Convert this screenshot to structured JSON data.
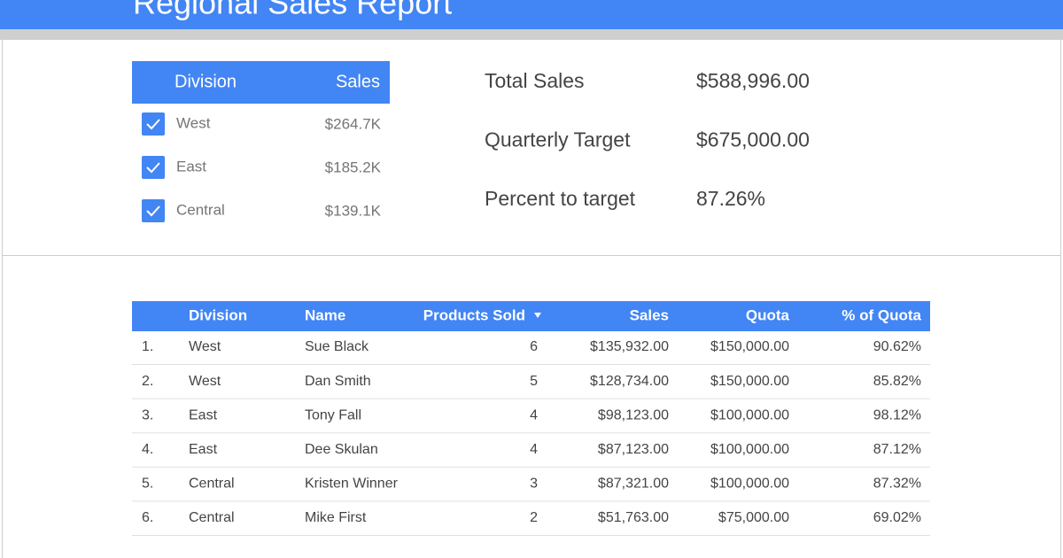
{
  "header": {
    "title": "Regional Sales Report"
  },
  "filter": {
    "columns": [
      "Division",
      "Sales"
    ],
    "rows": [
      [
        "West",
        "$264.7K"
      ],
      [
        "East",
        "$185.2K"
      ],
      [
        "Central",
        "$139.1K"
      ]
    ]
  },
  "summary": [
    [
      "Total Sales",
      "$588,996.00"
    ],
    [
      "Quarterly Target",
      "$675,000.00"
    ],
    [
      "Percent to target",
      "87.26%"
    ]
  ],
  "table": {
    "columns": [
      "Division",
      "Name",
      "Products Sold",
      "Sales",
      "Quota",
      "% of Quota"
    ],
    "rows": [
      [
        "1.",
        "West",
        "Sue Black",
        "6",
        "$135,932.00",
        "$150,000.00",
        "90.62%"
      ],
      [
        "2.",
        "West",
        "Dan Smith",
        "5",
        "$128,734.00",
        "$150,000.00",
        "85.82%"
      ],
      [
        "3.",
        "East",
        "Tony Fall",
        "4",
        "$98,123.00",
        "$100,000.00",
        "98.12%"
      ],
      [
        "4.",
        "East",
        "Dee Skulan",
        "4",
        "$87,123.00",
        "$100,000.00",
        "87.12%"
      ],
      [
        "5.",
        "Central",
        "Kristen Winner",
        "3",
        "$87,321.00",
        "$100,000.00",
        "87.32%"
      ],
      [
        "6.",
        "Central",
        "Mike First",
        "2",
        "$51,763.00",
        "$75,000.00",
        "69.02%"
      ]
    ]
  }
}
